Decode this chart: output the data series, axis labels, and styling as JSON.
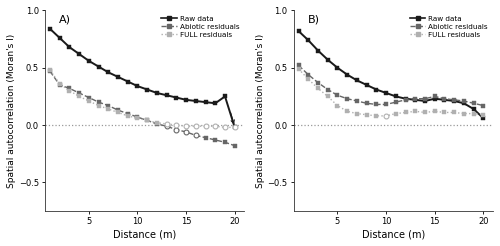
{
  "distance": [
    1,
    2,
    3,
    4,
    5,
    6,
    7,
    8,
    9,
    10,
    11,
    12,
    13,
    14,
    15,
    16,
    17,
    18,
    19,
    20
  ],
  "panel_A": {
    "raw": [
      0.84,
      0.76,
      0.68,
      0.62,
      0.56,
      0.51,
      0.46,
      0.42,
      0.38,
      0.34,
      0.31,
      0.28,
      0.26,
      0.24,
      0.22,
      0.21,
      0.2,
      0.19,
      0.25,
      -0.02
    ],
    "raw_sig": [
      true,
      true,
      true,
      true,
      true,
      true,
      true,
      true,
      true,
      true,
      true,
      true,
      true,
      true,
      true,
      true,
      true,
      true,
      true,
      true
    ],
    "abiotic": [
      0.47,
      0.35,
      0.32,
      0.28,
      0.24,
      0.2,
      0.17,
      0.13,
      0.1,
      0.07,
      0.04,
      0.01,
      -0.01,
      -0.04,
      -0.06,
      -0.09,
      -0.11,
      -0.13,
      -0.15,
      -0.18
    ],
    "abiotic_sig": [
      true,
      true,
      true,
      true,
      true,
      true,
      true,
      true,
      true,
      true,
      true,
      true,
      false,
      false,
      false,
      false,
      true,
      true,
      true,
      true
    ],
    "full": [
      0.48,
      0.36,
      0.3,
      0.25,
      0.21,
      0.17,
      0.14,
      0.11,
      0.08,
      0.06,
      0.04,
      0.02,
      0.01,
      0.0,
      -0.01,
      -0.01,
      -0.01,
      -0.01,
      -0.02,
      -0.02
    ],
    "full_sig": [
      true,
      true,
      true,
      true,
      true,
      true,
      true,
      true,
      true,
      true,
      true,
      true,
      false,
      false,
      false,
      false,
      false,
      false,
      false,
      false
    ]
  },
  "panel_B": {
    "raw": [
      0.82,
      0.74,
      0.65,
      0.57,
      0.5,
      0.44,
      0.39,
      0.35,
      0.31,
      0.28,
      0.25,
      0.23,
      0.22,
      0.21,
      0.23,
      0.22,
      0.21,
      0.19,
      0.14,
      0.06
    ],
    "raw_sig": [
      true,
      true,
      true,
      true,
      true,
      true,
      true,
      true,
      true,
      true,
      true,
      true,
      true,
      true,
      true,
      true,
      true,
      true,
      true,
      true
    ],
    "abiotic": [
      0.52,
      0.44,
      0.37,
      0.31,
      0.26,
      0.23,
      0.21,
      0.19,
      0.18,
      0.18,
      0.2,
      0.22,
      0.23,
      0.23,
      0.25,
      0.23,
      0.22,
      0.21,
      0.19,
      0.17
    ],
    "abiotic_sig": [
      true,
      true,
      true,
      true,
      true,
      true,
      true,
      true,
      true,
      true,
      true,
      true,
      true,
      true,
      true,
      true,
      true,
      true,
      true,
      true
    ],
    "full": [
      0.49,
      0.4,
      0.32,
      0.25,
      0.17,
      0.12,
      0.1,
      0.09,
      0.08,
      0.08,
      0.1,
      0.11,
      0.12,
      0.11,
      0.12,
      0.11,
      0.11,
      0.1,
      0.1,
      0.09
    ],
    "full_sig": [
      true,
      true,
      true,
      true,
      true,
      true,
      true,
      true,
      true,
      false,
      true,
      true,
      true,
      true,
      true,
      true,
      true,
      true,
      true,
      true
    ]
  },
  "raw_color": "#1a1a1a",
  "abiotic_color": "#666666",
  "full_color": "#b0b0b0",
  "background_color": "#ffffff",
  "ylim": [
    -0.75,
    1.0
  ],
  "xlim": [
    0.5,
    21
  ],
  "yticks": [
    -0.5,
    0.0,
    0.5,
    1.0
  ],
  "xticks": [
    5,
    10,
    15,
    20
  ],
  "xlabel": "Distance (m)",
  "ylabel": "Spatial autocorrelation (Moran's I)",
  "label_A": "A)",
  "label_B": "B)",
  "legend_raw": "Raw data",
  "legend_abiotic": "Abiotic residuals",
  "legend_full": "FULL residuals"
}
